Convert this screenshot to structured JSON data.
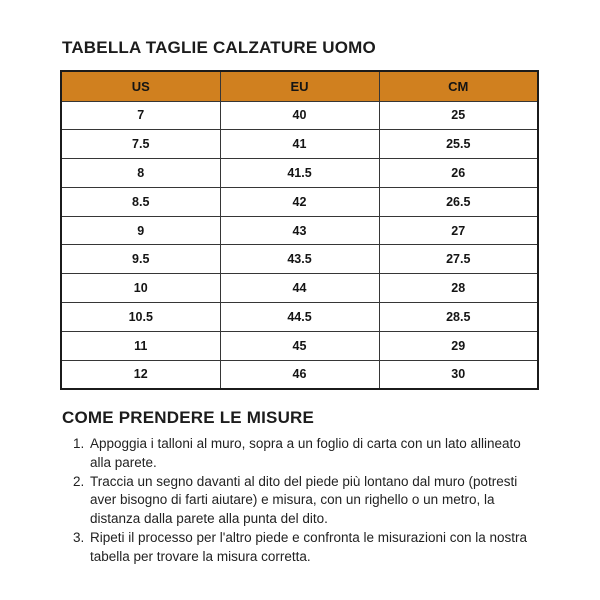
{
  "page": {
    "title": "TABELLA TAGLIE CALZATURE UOMO",
    "section_heading": "COME PRENDERE LE MISURE"
  },
  "size_table": {
    "headers": [
      "US",
      "EU",
      "CM"
    ],
    "rows": [
      [
        "7",
        "40",
        "25"
      ],
      [
        "7.5",
        "41",
        "25.5"
      ],
      [
        "8",
        "41.5",
        "26"
      ],
      [
        "8.5",
        "42",
        "26.5"
      ],
      [
        "9",
        "43",
        "27"
      ],
      [
        "9.5",
        "43.5",
        "27.5"
      ],
      [
        "10",
        "44",
        "28"
      ],
      [
        "10.5",
        "44.5",
        "28.5"
      ],
      [
        "11",
        "45",
        "29"
      ],
      [
        "12",
        "46",
        "30"
      ]
    ],
    "colors": {
      "header_bg": "#D0801F",
      "header_text": "#141414",
      "border": "#363636"
    }
  },
  "instructions": {
    "steps": [
      "Appoggia i talloni al muro, sopra a un foglio di carta con un lato allineato alla parete.",
      "Traccia un segno davanti al dito del piede più lontano dal muro (potresti aver bisogno di farti aiutare) e misura, con un righello o un metro, la distanza dalla parete alla punta del dito.",
      "Ripeti il processo per l'altro piede e confronta le misurazioni con la nostra tabella per trovare la misura corretta."
    ]
  }
}
